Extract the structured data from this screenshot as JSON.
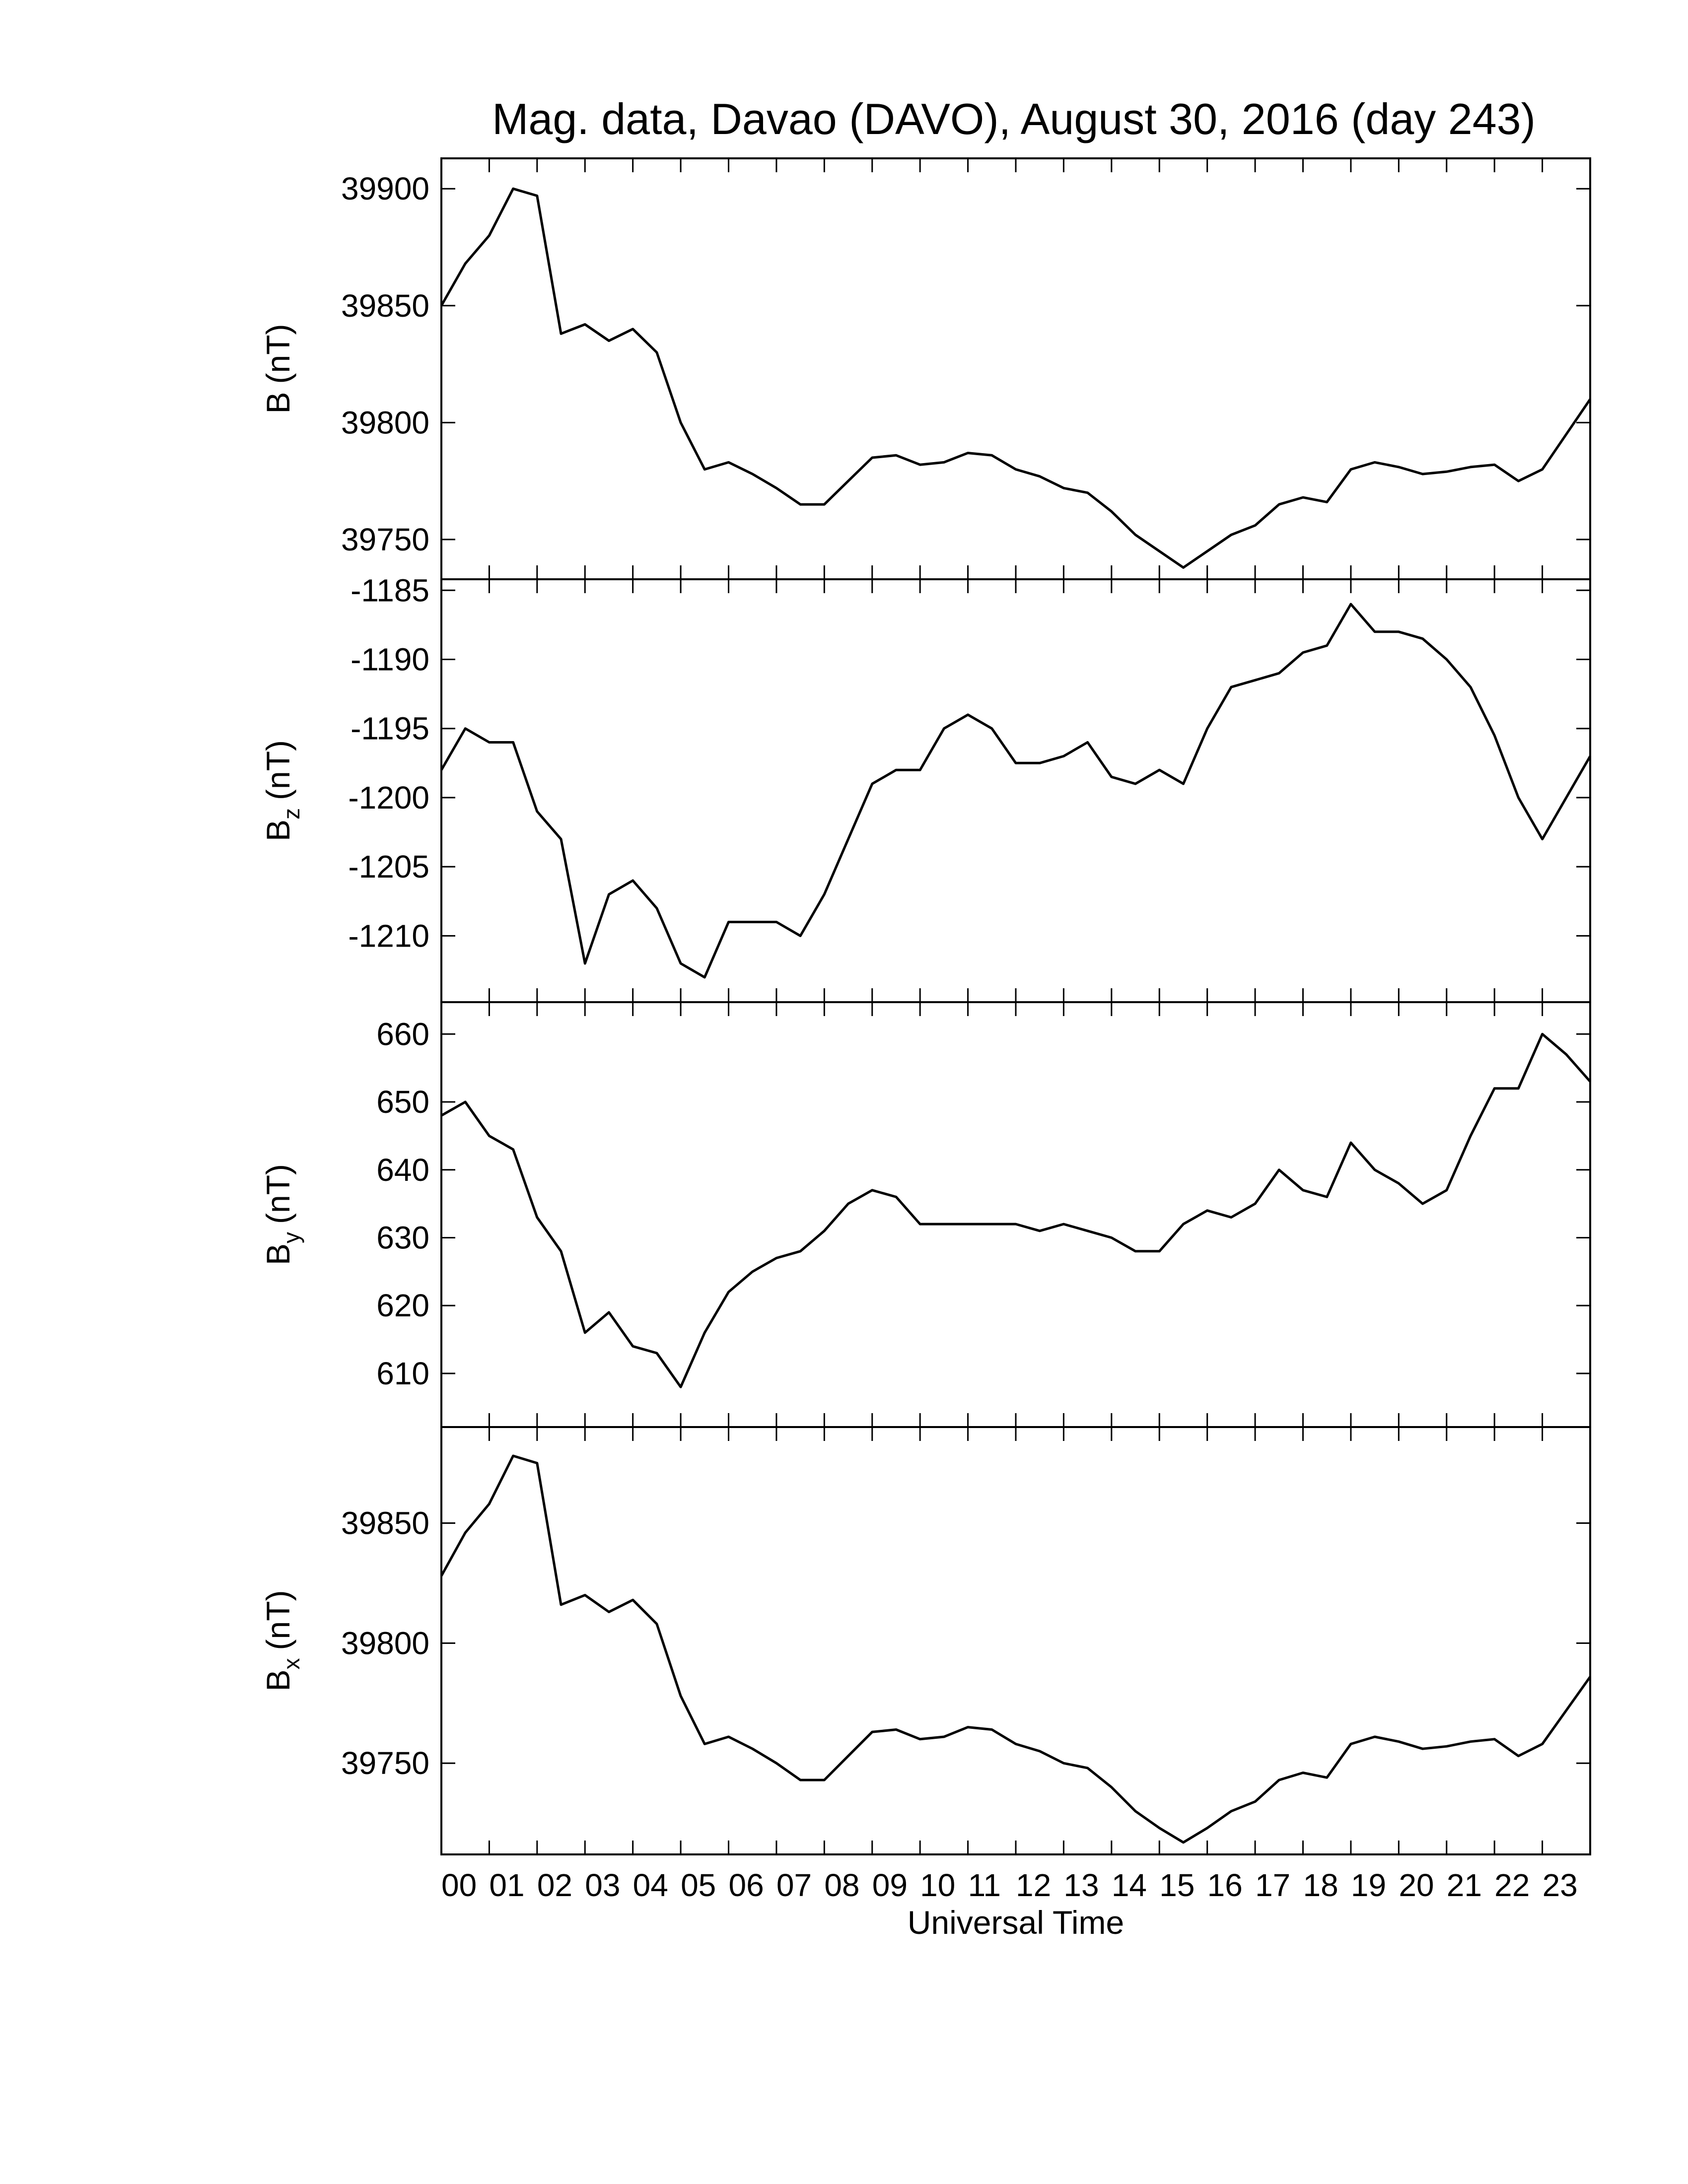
{
  "chart_data": [
    {
      "type": "line",
      "title": "Mag. data, Davao (DAVO), August 30, 2016 (day 243)",
      "ylabel": "B",
      "ylabel_units": "(nT)",
      "color": "#000000",
      "x": [
        0,
        0.5,
        1,
        1.5,
        2,
        2.5,
        3,
        3.5,
        4,
        4.5,
        5,
        5.5,
        6,
        6.5,
        7,
        7.5,
        8,
        8.5,
        9,
        9.5,
        10,
        10.5,
        11,
        11.5,
        12,
        12.5,
        13,
        13.5,
        14,
        14.5,
        15,
        15.5,
        16,
        16.5,
        17,
        17.5,
        18,
        18.5,
        19,
        19.5,
        20,
        20.5,
        21,
        21.5,
        22,
        22.5,
        23,
        23.5,
        24
      ],
      "values": [
        39850,
        39868,
        39880,
        39900,
        39897,
        39838,
        39842,
        39835,
        39840,
        39830,
        39800,
        39780,
        39783,
        39778,
        39772,
        39765,
        39765,
        39775,
        39785,
        39786,
        39782,
        39783,
        39787,
        39786,
        39780,
        39777,
        39772,
        39770,
        39762,
        39752,
        39745,
        39738,
        39745,
        39752,
        39756,
        39765,
        39768,
        39766,
        39780,
        39783,
        39781,
        39778,
        39779,
        39781,
        39782,
        39775,
        39780,
        39795,
        39810
      ],
      "xlim": [
        0,
        24
      ],
      "ylim": [
        39733,
        39913
      ],
      "yticks": [
        39750,
        39800,
        39850,
        39900
      ]
    },
    {
      "type": "line",
      "ylabel": "B",
      "ylabel_subscript": "z",
      "ylabel_units": "(nT)",
      "color": "#000000",
      "x": [
        0,
        0.5,
        1,
        1.5,
        2,
        2.5,
        3,
        3.5,
        4,
        4.5,
        5,
        5.5,
        6,
        6.5,
        7,
        7.5,
        8,
        8.5,
        9,
        9.5,
        10,
        10.5,
        11,
        11.5,
        12,
        12.5,
        13,
        13.5,
        14,
        14.5,
        15,
        15.5,
        16,
        16.5,
        17,
        17.5,
        18,
        18.5,
        19,
        19.5,
        20,
        20.5,
        21,
        21.5,
        22,
        22.5,
        23,
        23.5,
        24
      ],
      "values": [
        -1198,
        -1195,
        -1196,
        -1196,
        -1201,
        -1203,
        -1212,
        -1207,
        -1206,
        -1208,
        -1212,
        -1213,
        -1209,
        -1209,
        -1209,
        -1210,
        -1207,
        -1203,
        -1199,
        -1198,
        -1198,
        -1195,
        -1194,
        -1195,
        -1197.5,
        -1197.5,
        -1197,
        -1196,
        -1198.5,
        -1199,
        -1198,
        -1199,
        -1195,
        -1192,
        -1191.5,
        -1191,
        -1189.5,
        -1189,
        -1186,
        -1188,
        -1188,
        -1188.5,
        -1190,
        -1192,
        -1195.5,
        -1200,
        -1203,
        -1200,
        -1197
      ],
      "xlim": [
        0,
        24
      ],
      "ylim": [
        -1214.8,
        -1184.2
      ],
      "yticks": [
        -1210,
        -1205,
        -1200,
        -1195,
        -1190,
        -1185
      ]
    },
    {
      "type": "line",
      "ylabel": "B",
      "ylabel_subscript": "y",
      "ylabel_units": "(nT)",
      "color": "#000000",
      "x": [
        0,
        0.5,
        1,
        1.5,
        2,
        2.5,
        3,
        3.5,
        4,
        4.5,
        5,
        5.5,
        6,
        6.5,
        7,
        7.5,
        8,
        8.5,
        9,
        9.5,
        10,
        10.5,
        11,
        11.5,
        12,
        12.5,
        13,
        13.5,
        14,
        14.5,
        15,
        15.5,
        16,
        16.5,
        17,
        17.5,
        18,
        18.5,
        19,
        19.5,
        20,
        20.5,
        21,
        21.5,
        22,
        22.5,
        23,
        23.5,
        24
      ],
      "values": [
        648,
        650,
        645,
        643,
        633,
        628,
        616,
        619,
        614,
        613,
        608,
        616,
        622,
        625,
        627,
        628,
        631,
        635,
        637,
        636,
        632,
        632,
        632,
        632,
        632,
        631,
        632,
        631,
        630,
        628,
        628,
        632,
        634,
        633,
        635,
        640,
        637,
        636,
        644,
        640,
        638,
        635,
        637,
        645,
        652,
        652,
        660,
        657,
        653
      ],
      "xlim": [
        0,
        24
      ],
      "ylim": [
        602.1,
        664.7
      ],
      "yticks": [
        610,
        620,
        630,
        640,
        650,
        660
      ]
    },
    {
      "type": "line",
      "ylabel": "B",
      "ylabel_subscript": "x",
      "ylabel_units": "(nT)",
      "xlabel": "Universal Time",
      "color": "#000000",
      "x": [
        0,
        0.5,
        1,
        1.5,
        2,
        2.5,
        3,
        3.5,
        4,
        4.5,
        5,
        5.5,
        6,
        6.5,
        7,
        7.5,
        8,
        8.5,
        9,
        9.5,
        10,
        10.5,
        11,
        11.5,
        12,
        12.5,
        13,
        13.5,
        14,
        14.5,
        15,
        15.5,
        16,
        16.5,
        17,
        17.5,
        18,
        18.5,
        19,
        19.5,
        20,
        20.5,
        21,
        21.5,
        22,
        22.5,
        23,
        23.5,
        24
      ],
      "values": [
        39828,
        39846,
        39858,
        39878,
        39875,
        39816,
        39820,
        39813,
        39818,
        39808,
        39778,
        39758,
        39761,
        39756,
        39750,
        39743,
        39743,
        39753,
        39763,
        39764,
        39760,
        39761,
        39765,
        39764,
        39758,
        39755,
        39750,
        39748,
        39740,
        39730,
        39723,
        39717,
        39723,
        39730,
        39734,
        39743,
        39746,
        39744,
        39758,
        39761,
        39759,
        39756,
        39757,
        39759,
        39760,
        39753,
        39758,
        39772,
        39786
      ],
      "xlim": [
        0,
        24
      ],
      "ylim": [
        39712,
        39890
      ],
      "yticks": [
        39750,
        39800,
        39850
      ],
      "xticks": [
        {
          "value": 0,
          "label": "00"
        },
        {
          "value": 1,
          "label": "01"
        },
        {
          "value": 2,
          "label": "02"
        },
        {
          "value": 3,
          "label": "03"
        },
        {
          "value": 4,
          "label": "04"
        },
        {
          "value": 5,
          "label": "05"
        },
        {
          "value": 6,
          "label": "06"
        },
        {
          "value": 7,
          "label": "07"
        },
        {
          "value": 8,
          "label": "08"
        },
        {
          "value": 9,
          "label": "09"
        },
        10,
        11,
        12,
        13,
        14,
        15,
        16,
        17,
        18,
        19,
        20,
        21,
        22,
        23
      ]
    }
  ]
}
